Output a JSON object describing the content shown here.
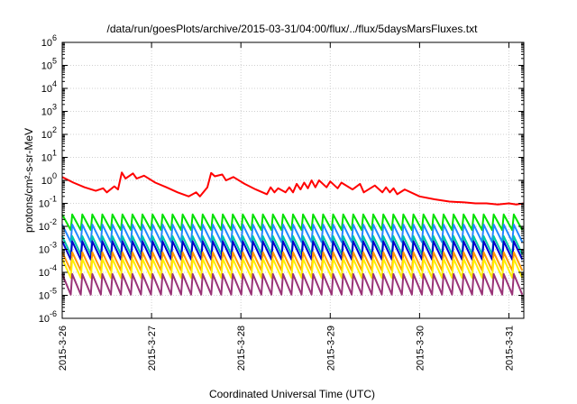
{
  "chart_data": {
    "type": "line",
    "title": "/data/run/goesPlots/archive/2015-03-31/04:00/flux/../flux/5daysMarsFluxes.txt",
    "xlabel": "Coordinated Universal Time (UTC)",
    "ylabel": "protons/cm²-s-sr-MeV",
    "x_ticks": [
      "2015-3-26",
      "2015-3-27",
      "2015-3-28",
      "2015-3-29",
      "2015-3-30",
      "2015-3-31"
    ],
    "xlim": [
      "2015-03-26T00:00",
      "2015-03-31T04:00"
    ],
    "y_scale": "log",
    "ylim": [
      1e-06,
      1000000.0
    ],
    "y_ticks": [
      {
        "base": "10",
        "exp": "-6"
      },
      {
        "base": "10",
        "exp": "-5"
      },
      {
        "base": "10",
        "exp": "-4"
      },
      {
        "base": "10",
        "exp": "-3"
      },
      {
        "base": "10",
        "exp": "-2"
      },
      {
        "base": "10",
        "exp": "-1"
      },
      {
        "base": "10",
        "exp": "0"
      },
      {
        "base": "10",
        "exp": "1"
      },
      {
        "base": "10",
        "exp": "2"
      },
      {
        "base": "10",
        "exp": "3"
      },
      {
        "base": "10",
        "exp": "4"
      },
      {
        "base": "10",
        "exp": "5"
      },
      {
        "base": "10",
        "exp": "6"
      }
    ],
    "grid": true,
    "series": [
      {
        "color": "#ff0000",
        "x": [
          "2015-03-26T00:00",
          "2015-03-26T03:00",
          "2015-03-26T06:00",
          "2015-03-26T09:00",
          "2015-03-26T11:00",
          "2015-03-26T12:00",
          "2015-03-26T14:00",
          "2015-03-26T15:00",
          "2015-03-26T16:00",
          "2015-03-26T17:00",
          "2015-03-26T19:00",
          "2015-03-26T20:00",
          "2015-03-26T22:00",
          "2015-03-27T01:00",
          "2015-03-27T04:00",
          "2015-03-27T07:00",
          "2015-03-27T10:00",
          "2015-03-27T12:00",
          "2015-03-27T13:00",
          "2015-03-27T15:00",
          "2015-03-27T16:00",
          "2015-03-27T17:00",
          "2015-03-27T19:00",
          "2015-03-27T20:00",
          "2015-03-27T22:00",
          "2015-03-28T01:00",
          "2015-03-28T04:00",
          "2015-03-28T07:00",
          "2015-03-28T08:00",
          "2015-03-28T09:00",
          "2015-03-28T10:00",
          "2015-03-28T12:00",
          "2015-03-28T13:00",
          "2015-03-28T14:00",
          "2015-03-28T15:00",
          "2015-03-28T16:00",
          "2015-03-28T17:00",
          "2015-03-28T18:00",
          "2015-03-28T19:00",
          "2015-03-28T20:00",
          "2015-03-28T21:00",
          "2015-03-28T23:00",
          "2015-03-29T00:00",
          "2015-03-29T02:00",
          "2015-03-29T03:00",
          "2015-03-29T06:00",
          "2015-03-29T08:00",
          "2015-03-29T09:00",
          "2015-03-29T12:00",
          "2015-03-29T14:00",
          "2015-03-29T15:00",
          "2015-03-29T16:00",
          "2015-03-29T17:00",
          "2015-03-29T18:00",
          "2015-03-29T20:00",
          "2015-03-30T00:00",
          "2015-03-30T04:00",
          "2015-03-30T08:00",
          "2015-03-30T12:00",
          "2015-03-30T15:00",
          "2015-03-30T18:00",
          "2015-03-30T21:00",
          "2015-03-31T00:00",
          "2015-03-31T02:00",
          "2015-03-31T04:00"
        ],
        "y": [
          1.4,
          0.8,
          0.5,
          0.35,
          0.45,
          0.3,
          0.55,
          0.4,
          2.2,
          1.2,
          2.0,
          1.2,
          1.6,
          0.8,
          0.5,
          0.3,
          0.2,
          0.3,
          0.2,
          0.5,
          2.1,
          1.5,
          1.8,
          1.0,
          1.4,
          0.7,
          0.4,
          0.25,
          0.5,
          0.3,
          0.45,
          0.3,
          0.5,
          0.3,
          0.7,
          0.4,
          0.8,
          0.45,
          1.0,
          0.5,
          1.0,
          0.5,
          0.9,
          0.45,
          0.8,
          0.4,
          0.7,
          0.3,
          0.6,
          0.3,
          0.5,
          0.3,
          0.45,
          0.25,
          0.4,
          0.2,
          0.15,
          0.12,
          0.11,
          0.1,
          0.1,
          0.09,
          0.1,
          0.09,
          0.1
        ]
      },
      {
        "color": "#00e000",
        "base": 0.015,
        "amp": 2.2
      },
      {
        "color": "#2288ff",
        "base": 0.005,
        "amp": 2.4
      },
      {
        "color": "#00c8a8",
        "base": 0.0015,
        "amp": 2.5
      },
      {
        "color": "#0000cc",
        "base": 0.0009,
        "amp": 2.5
      },
      {
        "color": "#ff9900",
        "base": 0.0003,
        "amp": 2.5
      },
      {
        "color": "#ffee00",
        "base": 0.00015,
        "amp": 2.6
      },
      {
        "color": "#993377",
        "base": 3e-05,
        "amp": 2.8
      }
    ]
  }
}
